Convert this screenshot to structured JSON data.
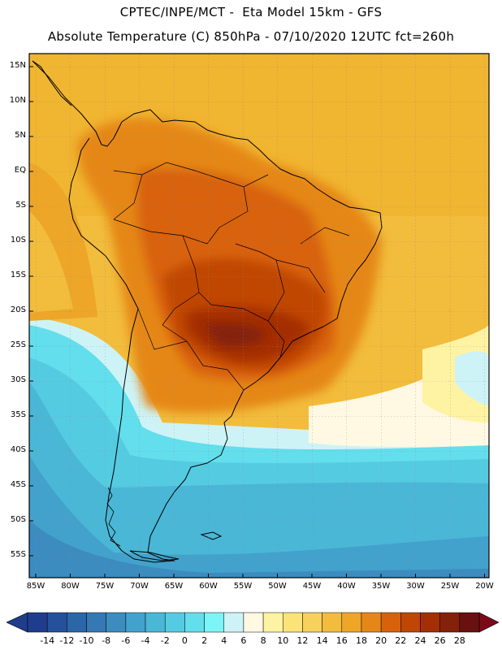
{
  "header": {
    "line1": "CPTEC/INPE/MCT -  Eta Model 15km - GFS",
    "line2": "Absolute Temperature (C) 850hPa - 07/10/2020 12UTC fct=260h"
  },
  "map": {
    "latitude_labels": [
      "15N",
      "10N",
      "5N",
      "EQ",
      "5S",
      "10S",
      "15S",
      "20S",
      "25S",
      "30S",
      "35S",
      "40S",
      "45S",
      "50S",
      "55S"
    ],
    "longitude_labels": [
      "85W",
      "80W",
      "75W",
      "70W",
      "65W",
      "60W",
      "55W",
      "50W",
      "45W",
      "40W",
      "35W",
      "30W",
      "25W",
      "20W"
    ]
  },
  "colorbar": {
    "labels": [
      "-14",
      "-12",
      "-10",
      "-8",
      "-6",
      "-4",
      "-2",
      "0",
      "2",
      "4",
      "6",
      "8",
      "10",
      "12",
      "14",
      "16",
      "18",
      "20",
      "22",
      "24",
      "26",
      "28"
    ],
    "colors": [
      "#1f3d8c",
      "#25519c",
      "#2b66a8",
      "#3479b4",
      "#3c8cc0",
      "#42a2cc",
      "#4ab7d6",
      "#55cbe2",
      "#63deec",
      "#7cf5f8",
      "#cdf3f7",
      "#fff8e2",
      "#fdf3a2",
      "#fbe37a",
      "#f8d05c",
      "#f2bc3c",
      "#eda628",
      "#e58718",
      "#d8620c",
      "#c04606",
      "#a42f04",
      "#84210a",
      "#6a1010"
    ],
    "left_arrow_color": "#1f3d8c",
    "right_arrow_color": "#7a0a1a"
  }
}
